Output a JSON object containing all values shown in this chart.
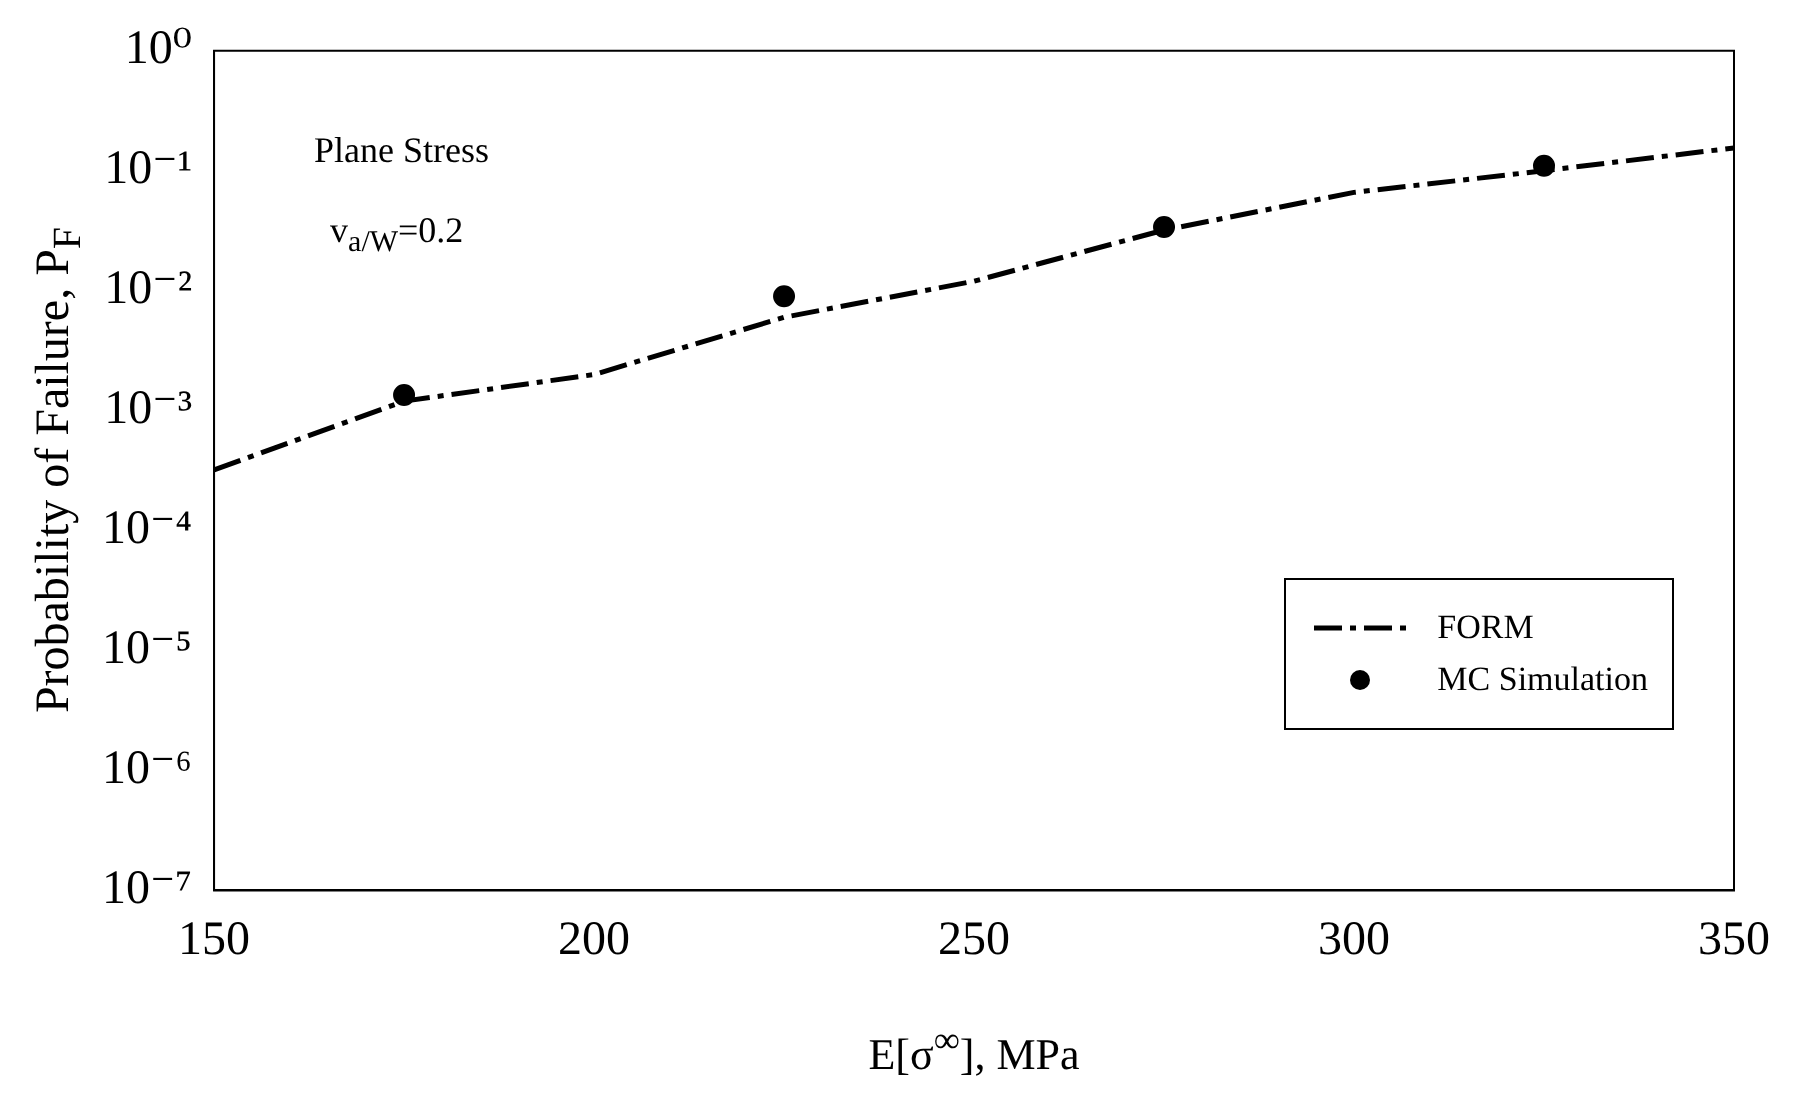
{
  "chart_data": {
    "type": "line",
    "xlabel": "E[σ$^{∞}$], MPa",
    "ylabel": "Probability of Failure, P$_{F}$",
    "annotations": [
      "Plane Stress",
      "v$_{a/W}$=0.2"
    ],
    "series": [
      {
        "name": "FORM",
        "color": "#000000",
        "line_style": "dashed",
        "marker": "none",
        "x": [
          150,
          175,
          200,
          225,
          250,
          275,
          300,
          325,
          350
        ],
        "values": [
          0.00032,
          0.0012,
          0.002,
          0.006,
          0.012,
          0.032,
          0.066,
          0.1,
          0.155
        ]
      },
      {
        "name": "MC Simulation",
        "type": "scatter",
        "color": "#000000",
        "marker": "circle",
        "x": [
          175,
          225,
          275,
          325
        ],
        "values": [
          0.00135,
          0.009,
          0.034,
          0.11
        ]
      }
    ],
    "log": "y",
    "grid": false,
    "legend": "bottom right",
    "xlim": [
      150,
      350
    ],
    "xticks": [
      150,
      200,
      250,
      300,
      350
    ],
    "ylim": [
      1e-07,
      1
    ],
    "yticks": [
      {
        "value": 1e-07,
        "label": "10⁻⁷"
      },
      {
        "value": 1e-06,
        "label": "10⁻⁶"
      },
      {
        "value": 1e-05,
        "label": "10⁻⁵"
      },
      {
        "value": 0.0001,
        "label": "10⁻⁴"
      },
      {
        "value": 0.001,
        "label": "10⁻³"
      },
      {
        "value": 0.01,
        "label": "10⁻²"
      },
      {
        "value": 0.1,
        "label": "10⁻¹"
      },
      {
        "value": 1,
        "label": "10⁰"
      }
    ]
  }
}
